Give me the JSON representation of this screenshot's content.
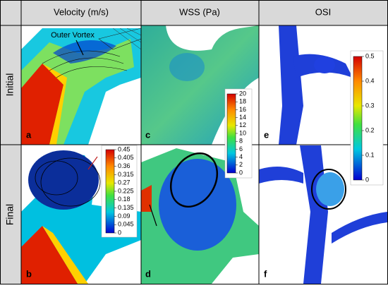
{
  "header": {
    "columns": [
      "Velocity (m/s)",
      "WSS (Pa)",
      "OSI"
    ]
  },
  "rows": [
    "Initial",
    "Final"
  ],
  "panels": {
    "a": "a",
    "b": "b",
    "c": "c",
    "d": "d",
    "e": "e",
    "f": "f"
  },
  "annotation": "Outer Vortex",
  "colorbars": [
    {
      "ticks": [
        0.45,
        0.405,
        0.36,
        0.315,
        0.27,
        0.225,
        0.18,
        0.135,
        0.09,
        0.045,
        0
      ]
    },
    {
      "ticks": [
        20,
        18,
        16,
        14,
        12,
        10,
        8,
        6,
        4,
        2,
        0
      ]
    },
    {
      "ticks": [
        0.5,
        0.4,
        0.3,
        0.2,
        0.1,
        0
      ]
    }
  ]
}
